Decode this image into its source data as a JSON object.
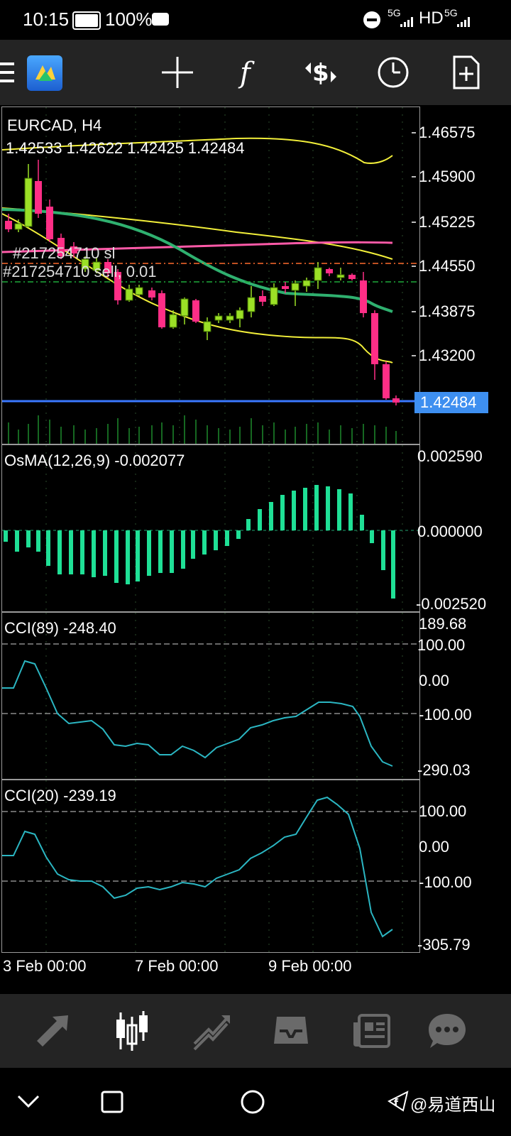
{
  "status_bar": {
    "time": "10:15",
    "battery": "100%",
    "network_left": "5G",
    "hd": "HD",
    "network_right": "5G"
  },
  "toolbar": {
    "menu_icon": "hamburger-icon",
    "app_logo": "metatrader-logo",
    "icons": [
      "crosshair-icon",
      "indicators-icon",
      "trade-icon",
      "timeframe-clock-icon",
      "new-order-icon"
    ]
  },
  "chart": {
    "symbol_title": "EURCAD, H4",
    "ohlc": "1.42533 1.42622 1.42425 1.42484",
    "order_sl_label": "#217254710 sl",
    "order_label": "#217254710 sell, 0.01",
    "price_ticks": [
      "1.46575",
      "1.45900",
      "1.45225",
      "1.44550",
      "1.43875",
      "1.43200"
    ],
    "current_price": "1.42484",
    "colors": {
      "bull": "#9be026",
      "bear": "#ff2e86",
      "current_line": "#3a78ff",
      "ma_green": "#2fb06f",
      "ma_pink": "#ff5aa8",
      "band_yellow": "#f2ef3a"
    }
  },
  "osma": {
    "label": "OsMA(12,26,9) -0.002077",
    "ticks": [
      "0.002590",
      "0.000000",
      "-0.002520"
    ],
    "color": "#1fe096"
  },
  "cci89": {
    "label": "CCI(89) -248.40",
    "ticks": [
      "189.68",
      "100.00",
      "0.00",
      "-100.00",
      "-290.03"
    ]
  },
  "cci20": {
    "label": "CCI(20) -239.19",
    "ticks": [
      "100.00",
      "0.00",
      "-100.00",
      "-305.79"
    ]
  },
  "time_axis": [
    "3 Feb 00:00",
    "7 Feb 00:00",
    "9 Feb 00:00"
  ],
  "bottom_nav": {
    "items": [
      "quotes-icon",
      "chart-icon",
      "trade-icon",
      "history-icon",
      "news-icon",
      "messages-icon"
    ]
  },
  "system_nav": {
    "watermark": "@易道西山"
  }
}
